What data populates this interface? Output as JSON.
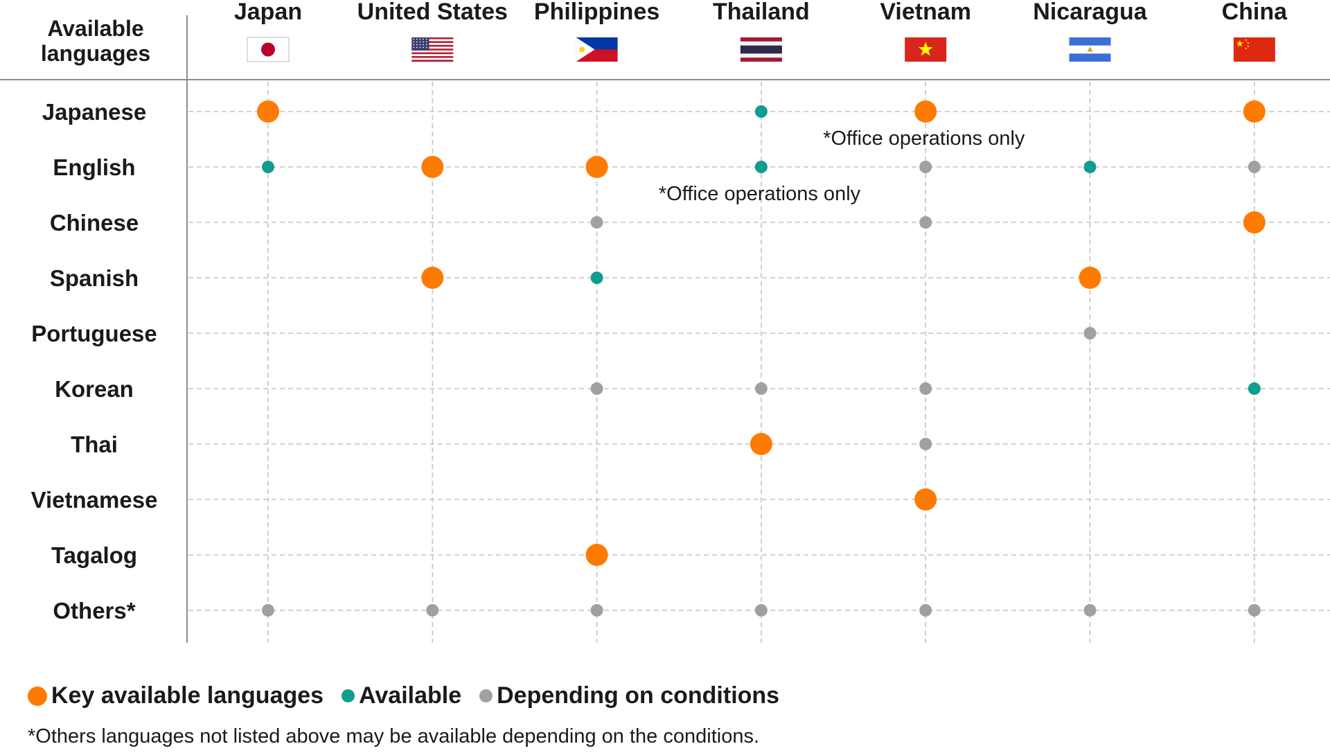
{
  "chart_data": {
    "type": "table",
    "corner_label": [
      "Available",
      "languages"
    ],
    "countries": [
      "Japan",
      "United States",
      "Philippines",
      "Thailand",
      "Vietnam",
      "Nicaragua",
      "China"
    ],
    "languages": [
      "Japanese",
      "English",
      "Chinese",
      "Spanish",
      "Portuguese",
      "Korean",
      "Thai",
      "Vietnamese",
      "Tagalog",
      "Others*"
    ],
    "levels": {
      "key": "Key available languages",
      "available": "Available",
      "conditional": "Depending on conditions"
    },
    "matrix": [
      [
        "key",
        null,
        null,
        "available",
        "key",
        null,
        "key"
      ],
      [
        "available",
        "key",
        "key",
        "available",
        "conditional",
        "available",
        "conditional"
      ],
      [
        null,
        null,
        "conditional",
        null,
        "conditional",
        null,
        "key"
      ],
      [
        null,
        "key",
        "available",
        null,
        null,
        "key",
        null
      ],
      [
        null,
        null,
        null,
        null,
        null,
        "conditional",
        null
      ],
      [
        null,
        null,
        "conditional",
        "conditional",
        "conditional",
        null,
        "available"
      ],
      [
        null,
        null,
        null,
        "key",
        "conditional",
        null,
        null
      ],
      [
        null,
        null,
        null,
        null,
        "key",
        null,
        null
      ],
      [
        null,
        null,
        "key",
        null,
        null,
        null,
        null
      ],
      [
        "conditional",
        "conditional",
        "conditional",
        "conditional",
        "conditional",
        "conditional",
        "conditional"
      ]
    ],
    "annotations": [
      {
        "text": "*Office operations only",
        "country": "Vietnam",
        "language": "Japanese"
      },
      {
        "text": "*Office operations only",
        "country": "Thailand",
        "language": "English"
      }
    ],
    "footnote": "*Others languages not listed above may be available depending on the conditions."
  },
  "colors": {
    "key": "#ff7a00",
    "available": "#0f9d8f",
    "conditional": "#a0a0a0",
    "grid": "#c4c4c4",
    "divider": "#8c8c8c"
  },
  "flag_icons": [
    "japan-flag-icon",
    "united-states-flag-icon",
    "philippines-flag-icon",
    "thailand-flag-icon",
    "vietnam-flag-icon",
    "nicaragua-flag-icon",
    "china-flag-icon"
  ]
}
